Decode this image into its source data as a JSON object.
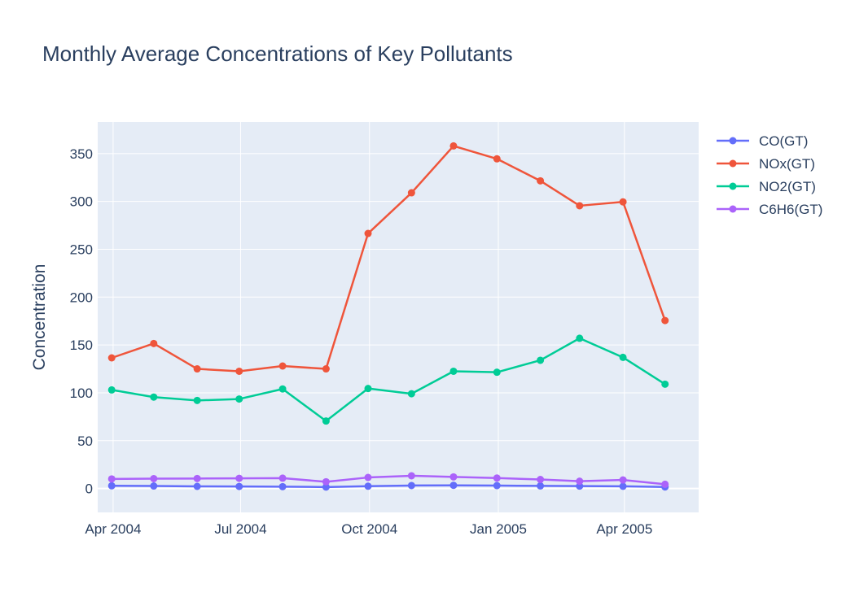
{
  "chart_data": {
    "type": "line",
    "title": "Monthly Average Concentrations of Key Pollutants",
    "xlabel": "",
    "ylabel": "Concentration",
    "x": [
      "2004-03-31",
      "2004-04-30",
      "2004-05-31",
      "2004-06-30",
      "2004-07-31",
      "2004-08-31",
      "2004-09-30",
      "2004-10-31",
      "2004-11-30",
      "2004-12-31",
      "2005-01-31",
      "2005-02-28",
      "2005-03-31",
      "2005-04-30"
    ],
    "x_ticks": [
      {
        "date": "2004-04-01",
        "label": "Apr 2004"
      },
      {
        "date": "2004-07-01",
        "label": "Jul 2004"
      },
      {
        "date": "2004-10-01",
        "label": "Oct 2004"
      },
      {
        "date": "2005-01-01",
        "label": "Jan 2005"
      },
      {
        "date": "2005-04-01",
        "label": "Apr 2005"
      }
    ],
    "xlim": [
      "2004-03-21",
      "2005-05-24"
    ],
    "ylim": [
      -25,
      383
    ],
    "y_ticks": [
      0,
      50,
      100,
      150,
      200,
      250,
      300,
      350
    ],
    "grid": true,
    "legend_position": "right",
    "series": [
      {
        "name": "CO(GT)",
        "color": "#636efa",
        "values": [
          2.8,
          2.6,
          2.2,
          2.1,
          1.9,
          1.5,
          2.4,
          3.1,
          3.3,
          3.0,
          2.7,
          2.5,
          2.3,
          1.6
        ]
      },
      {
        "name": "NOx(GT)",
        "color": "#ef553b",
        "values": [
          136.5,
          151.5,
          125,
          122.5,
          128,
          125,
          266.5,
          309,
          358,
          344.5,
          321.5,
          295.5,
          299.5,
          175.5
        ]
      },
      {
        "name": "NO2(GT)",
        "color": "#00cc96",
        "values": [
          103,
          95.5,
          92,
          93.5,
          104,
          70.5,
          104.5,
          99,
          122.5,
          121.5,
          134,
          157,
          137,
          109
        ]
      },
      {
        "name": "C6H6(GT)",
        "color": "#ab63fa",
        "values": [
          10,
          10.3,
          10.4,
          10.6,
          10.8,
          7,
          11.5,
          13.3,
          12.1,
          10.9,
          9.4,
          7.6,
          8.9,
          4.4
        ]
      }
    ]
  }
}
